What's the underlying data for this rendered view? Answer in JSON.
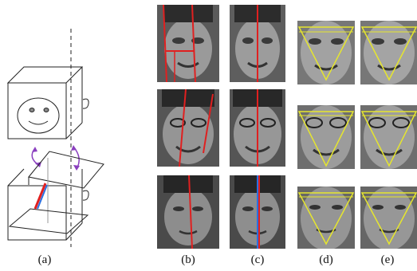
{
  "figure": {
    "panel_labels": [
      "(a)",
      "(b)",
      "(c)",
      "(d)",
      "(e)"
    ]
  },
  "colors": {
    "axis_line": "#e02020",
    "triangle_line": "#e6e62e",
    "arrow": "#8a3fbf",
    "box_line": "#222222",
    "blue_marker": "#2a6fe0"
  },
  "icons": [
    "smiley-face-icon",
    "ear-icon",
    "curved-arrow-icon"
  ]
}
